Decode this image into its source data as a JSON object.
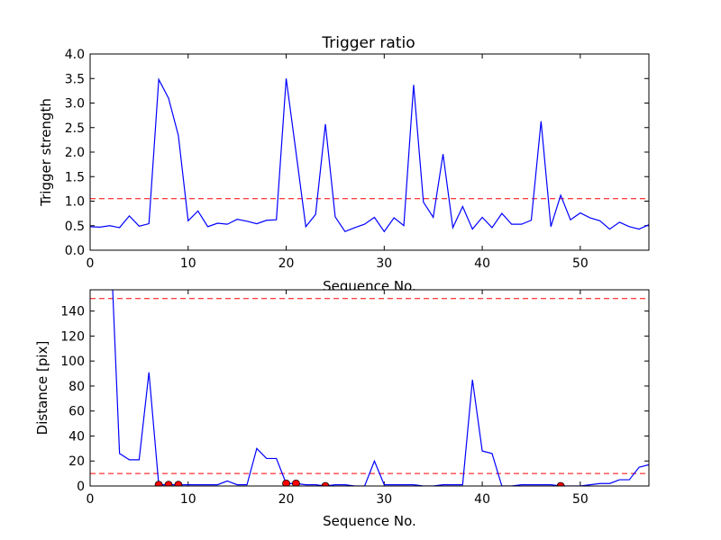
{
  "chart_data": [
    {
      "type": "line",
      "title": "Trigger ratio",
      "xlabel": "Sequence No.",
      "ylabel": "Trigger strength",
      "xlim": [
        0,
        57
      ],
      "ylim": [
        0,
        4.0
      ],
      "xticks": [
        0,
        10,
        20,
        30,
        40,
        50
      ],
      "yticks": [
        0.0,
        0.5,
        1.0,
        1.5,
        2.0,
        2.5,
        3.0,
        3.5,
        4.0
      ],
      "ytick_labels": [
        "0.0",
        "0.5",
        "1.0",
        "1.5",
        "2.0",
        "2.5",
        "3.0",
        "3.5",
        "4.0"
      ],
      "grid": false,
      "line_color": "#0000ff",
      "threshold": {
        "value": 1.05,
        "color": "#ff0000",
        "style": "dashed"
      },
      "series": [
        {
          "x": [
            0,
            1,
            2,
            3,
            4,
            5,
            6,
            7,
            8,
            9,
            10,
            11,
            12,
            13,
            14,
            15,
            16,
            17,
            18,
            19,
            20,
            21,
            22,
            23,
            24,
            25,
            26,
            27,
            28,
            29,
            30,
            31,
            32,
            33,
            34,
            35,
            36,
            37,
            38,
            39,
            40,
            41,
            42,
            43,
            44,
            45,
            46,
            47,
            48,
            49,
            50,
            51,
            52,
            53,
            54,
            55,
            56,
            57
          ],
          "y": [
            0.48,
            0.47,
            0.5,
            0.46,
            0.7,
            0.49,
            0.54,
            3.48,
            3.1,
            2.34,
            0.6,
            0.8,
            0.48,
            0.55,
            0.53,
            0.63,
            0.59,
            0.54,
            0.61,
            0.62,
            3.5,
            2.0,
            0.48,
            0.73,
            2.57,
            0.68,
            0.38,
            0.46,
            0.53,
            0.67,
            0.38,
            0.66,
            0.5,
            3.37,
            0.98,
            0.67,
            1.96,
            0.46,
            0.89,
            0.43,
            0.67,
            0.46,
            0.75,
            0.53,
            0.53,
            0.61,
            2.63,
            0.48,
            1.12,
            0.62,
            0.76,
            0.66,
            0.6,
            0.43,
            0.57,
            0.48,
            0.43,
            0.52
          ]
        }
      ]
    },
    {
      "type": "line",
      "title": "",
      "xlabel": "Sequence No.",
      "ylabel": "Distance [pix]",
      "xlim": [
        0,
        57
      ],
      "ylim": [
        0,
        157
      ],
      "xticks": [
        0,
        10,
        20,
        30,
        40,
        50
      ],
      "yticks": [
        0,
        20,
        40,
        60,
        80,
        100,
        120,
        140
      ],
      "ytick_labels": [
        "0",
        "20",
        "40",
        "60",
        "80",
        "100",
        "120",
        "140"
      ],
      "grid": false,
      "line_color": "#0000ff",
      "thresholds": [
        {
          "value": 150,
          "color": "#ff0000",
          "style": "dashed"
        },
        {
          "value": 10,
          "color": "#ff0000",
          "style": "dashed"
        }
      ],
      "series": [
        {
          "x": [
            2.3,
            3,
            4,
            5,
            6,
            7,
            8,
            9,
            10,
            11,
            12,
            13,
            14,
            15,
            16,
            17,
            18,
            19,
            20,
            21,
            22,
            23,
            24,
            25,
            26,
            27,
            28,
            29,
            30,
            31,
            32,
            33,
            34,
            35,
            36,
            37,
            38,
            39,
            40,
            41,
            42,
            43,
            44,
            45,
            46,
            47,
            48,
            49,
            50,
            51,
            52,
            53,
            54,
            55,
            56,
            57
          ],
          "y": [
            157,
            26,
            21,
            21,
            91,
            1,
            1,
            1,
            1,
            1,
            1,
            1,
            4,
            1,
            1,
            30,
            22,
            22,
            2,
            2,
            1,
            1,
            0,
            1,
            1,
            0,
            0,
            20,
            1,
            1,
            1,
            1,
            0,
            0,
            1,
            1,
            1,
            85,
            28,
            26,
            0,
            0,
            1,
            1,
            1,
            1,
            0,
            0,
            0,
            1,
            2,
            2,
            5,
            5,
            15,
            17
          ]
        }
      ],
      "highlighted_points": {
        "color": "#ff0000",
        "x": [
          7,
          8,
          9,
          20,
          21,
          24,
          48
        ],
        "y": [
          1,
          1,
          1,
          2,
          2,
          0,
          0
        ]
      }
    }
  ]
}
